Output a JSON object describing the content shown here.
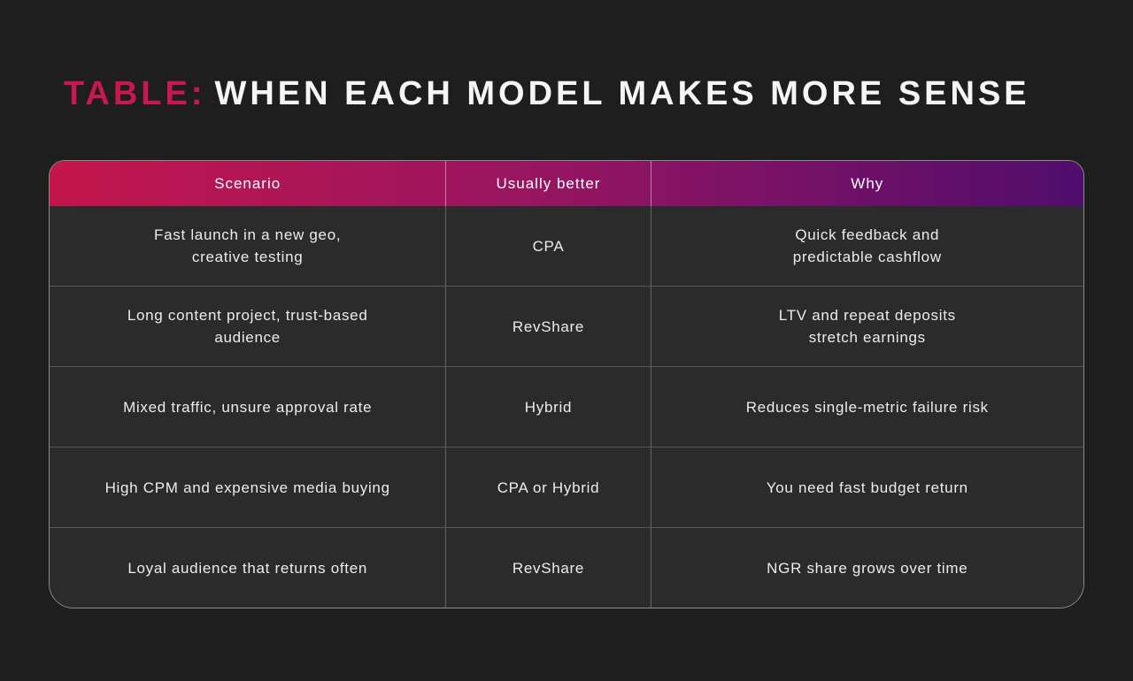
{
  "title": {
    "prefix": "TABLE:",
    "rest": "WHEN EACH MODEL MAKES MORE SENSE",
    "prefix_color": "#c9184f"
  },
  "colors": {
    "page_background": "#1e1e1e",
    "cell_background": "#2b2b2b",
    "header_gradient_from": "#c4164c",
    "header_gradient_via": "#941562",
    "header_gradient_to": "#500d6c",
    "row_separator": "#575757",
    "column_divider": "#636363",
    "outer_border": "#8c8c8c",
    "body_text": "#ececec"
  },
  "chart_data": {
    "type": "table",
    "title": "TABLE: WHEN EACH MODEL MAKES MORE SENSE",
    "columns": [
      "Scenario",
      "Usually better",
      "Why"
    ],
    "rows": [
      [
        "Fast launch in a new geo,\ncreative testing",
        "CPA",
        "Quick feedback and\npredictable cashflow"
      ],
      [
        "Long content project, trust-based\naudience",
        "RevShare",
        "LTV and repeat deposits\nstretch earnings"
      ],
      [
        "Mixed traffic, unsure approval rate",
        "Hybrid",
        "Reduces single-metric failure risk"
      ],
      [
        "High CPM and expensive media buying",
        "CPA or Hybrid",
        "You need fast budget return"
      ],
      [
        "Loyal audience that returns often",
        "RevShare",
        "NGR share grows over time"
      ]
    ]
  }
}
